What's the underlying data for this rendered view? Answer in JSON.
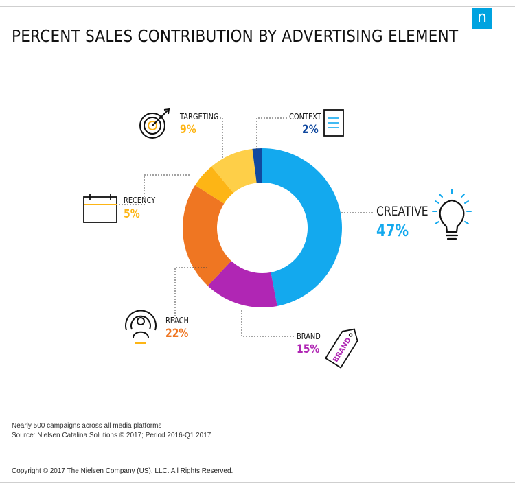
{
  "header": {
    "logo_letter": "n",
    "title": "PERCENT SALES CONTRIBUTION BY ADVERTISING ELEMENT"
  },
  "chart_data": {
    "type": "pie",
    "subtype": "donut",
    "title": "PERCENT SALES CONTRIBUTION BY ADVERTISING ELEMENT",
    "series": [
      {
        "name": "CREATIVE",
        "value": 47,
        "label": "47%",
        "color": "#13a9ee",
        "icon": "lightbulb-icon"
      },
      {
        "name": "BRAND",
        "value": 15,
        "label": "15%",
        "color": "#b026b4",
        "icon": "brand-tag-icon"
      },
      {
        "name": "REACH",
        "value": 22,
        "label": "22%",
        "color": "#ef7622",
        "icon": "reach-broadcast-icon"
      },
      {
        "name": "RECENCY",
        "value": 5,
        "label": "5%",
        "color": "#fdb515",
        "icon": "calendar-icon"
      },
      {
        "name": "TARGETING",
        "value": 9,
        "label": "9%",
        "color": "#fecf48",
        "icon": "target-icon"
      },
      {
        "name": "CONTEXT",
        "value": 2,
        "label": "2%",
        "color": "#11499f",
        "icon": "document-icon"
      }
    ]
  },
  "labels": {
    "creative": {
      "name": "CREATIVE",
      "value": "47%"
    },
    "brand": {
      "name": "BRAND",
      "value": "15%"
    },
    "reach": {
      "name": "REACH",
      "value": "22%"
    },
    "recency": {
      "name": "RECENCY",
      "value": "5%"
    },
    "targeting": {
      "name": "TARGETING",
      "value": "9%"
    },
    "context": {
      "name": "CONTEXT",
      "value": "2%"
    }
  },
  "brand_tag_text": "BRAND",
  "footnotes": {
    "line1": "Nearly 500 campaigns across all media platforms",
    "line2": "Source: Nielsen Catalina Solutions © 2017; Period 2016-Q1 2017"
  },
  "copyright": "Copyright © 2017 The Nielsen Company (US), LLC. All Rights Reserved."
}
